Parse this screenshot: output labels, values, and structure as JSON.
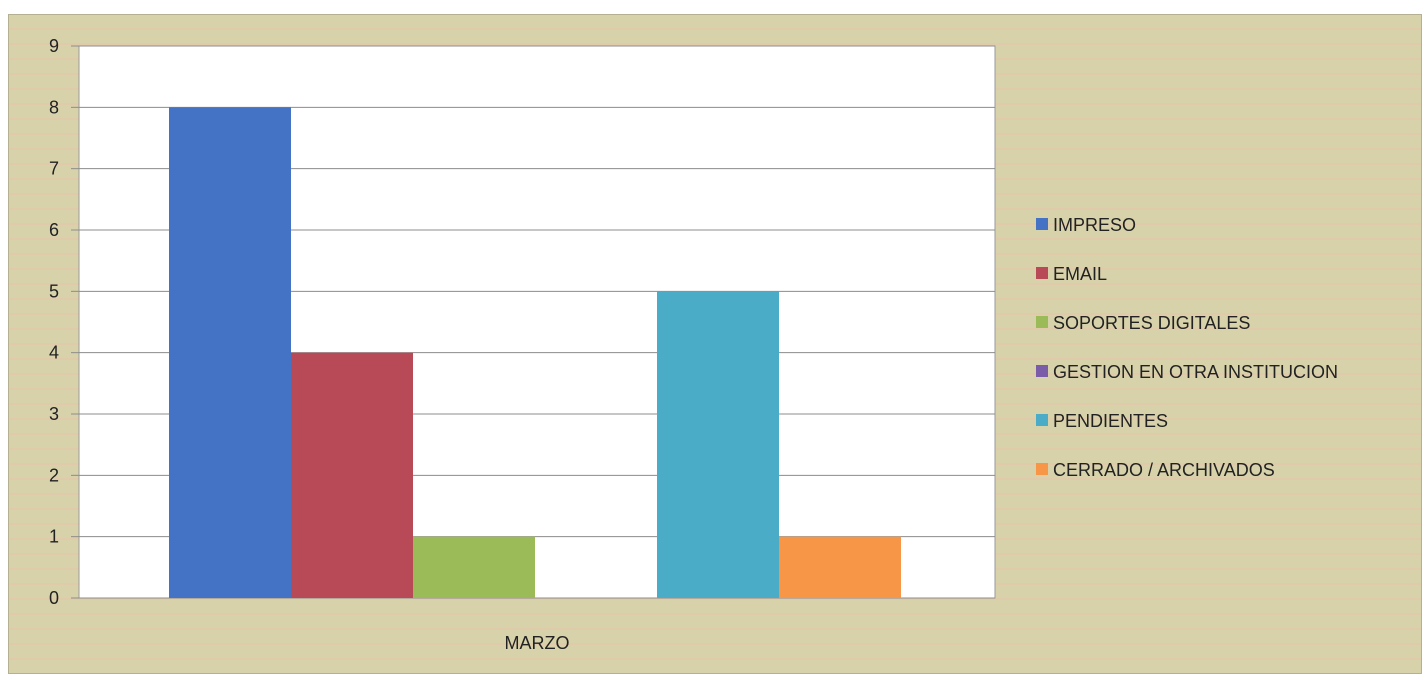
{
  "chart_data": {
    "type": "bar",
    "categories": [
      "MARZO"
    ],
    "series": [
      {
        "name": "IMPRESO",
        "values": [
          8
        ],
        "color": "#4472c4"
      },
      {
        "name": "EMAIL",
        "values": [
          4
        ],
        "color": "#b84a58"
      },
      {
        "name": "SOPORTES DIGITALES",
        "values": [
          1
        ],
        "color": "#9bbb59"
      },
      {
        "name": "GESTION EN OTRA INSTITUCION",
        "values": [
          0
        ],
        "color": "#7b5ca8"
      },
      {
        "name": "PENDIENTES",
        "values": [
          5
        ],
        "color": "#4aacc6"
      },
      {
        "name": "CERRADO / ARCHIVADOS",
        "values": [
          1
        ],
        "color": "#f79646"
      }
    ],
    "ylim": [
      0,
      9
    ],
    "yticks": [
      0,
      1,
      2,
      3,
      4,
      5,
      6,
      7,
      8,
      9
    ],
    "grid": true,
    "legend": "right"
  }
}
